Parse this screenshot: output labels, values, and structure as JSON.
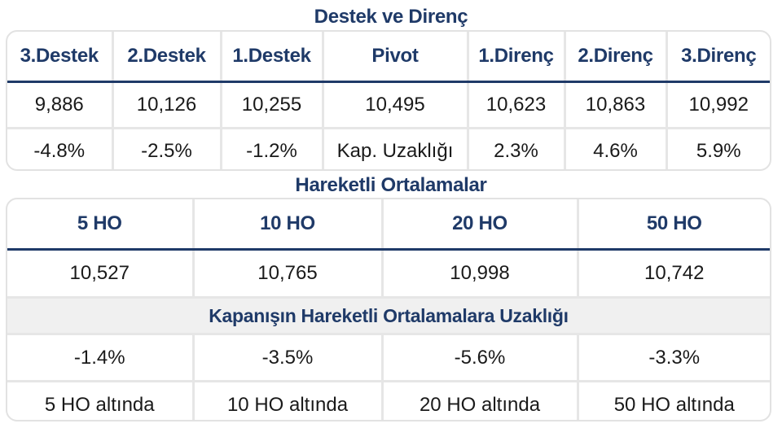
{
  "support_resistance": {
    "title": "Destek ve Direnç",
    "headers": [
      "3.Destek",
      "2.Destek",
      "1.Destek",
      "Pivot",
      "1.Direnç",
      "2.Direnç",
      "3.Direnç"
    ],
    "values": [
      "9,886",
      "10,126",
      "10,255",
      "10,495",
      "10,623",
      "10,863",
      "10,992"
    ],
    "distances": [
      "-4.8%",
      "-2.5%",
      "-1.2%",
      "Kap. Uzaklığı",
      "2.3%",
      "4.6%",
      "5.9%"
    ]
  },
  "moving_averages": {
    "title": "Hareketli Ortalamalar",
    "headers": [
      "5 HO",
      "10 HO",
      "20 HO",
      "50 HO"
    ],
    "values": [
      "10,527",
      "10,765",
      "10,998",
      "10,742"
    ],
    "distance_title": "Kapanışın Hareketli Ortalamalara Uzaklığı",
    "distances": [
      "-1.4%",
      "-3.5%",
      "-5.6%",
      "-3.3%"
    ],
    "statuses": [
      "5 HO altında",
      "10 HO altında",
      "20 HO altında",
      "50 HO altında"
    ]
  },
  "colors": {
    "heading_navy": "#1f3a68",
    "grid_gray": "#e6e6e6",
    "subtitle_band": "#f0f0f0"
  }
}
